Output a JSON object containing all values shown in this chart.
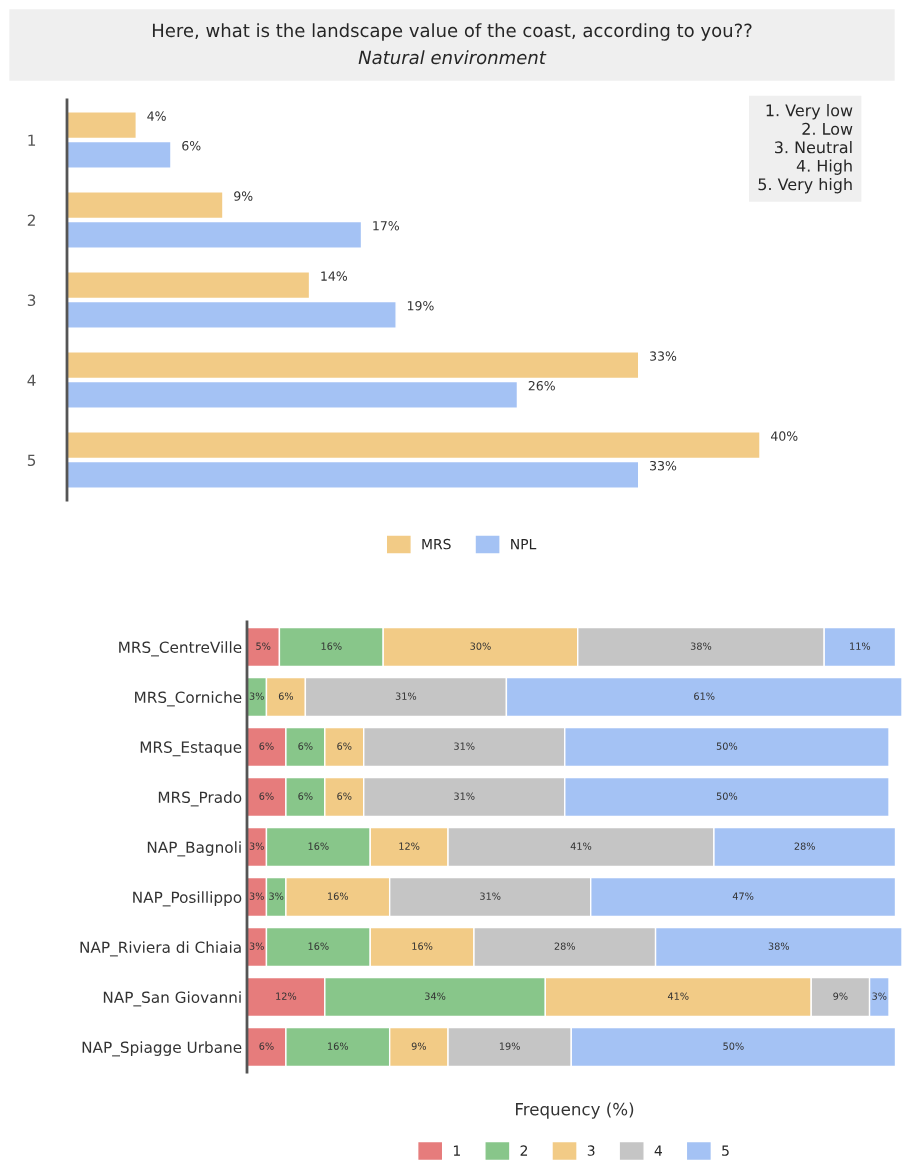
{
  "chart_data": [
    {
      "type": "bar",
      "orientation": "horizontal",
      "title": "Here, what is the landscape value of the coast, according to you??",
      "subtitle": "Natural environment",
      "categories": [
        "1",
        "2",
        "3",
        "4",
        "5"
      ],
      "series": [
        {
          "name": "MRS",
          "color": "#f2cb86",
          "values": [
            4,
            9,
            14,
            33,
            40
          ],
          "value_labels": [
            "4%",
            "9%",
            "14%",
            "33%",
            "40%"
          ]
        },
        {
          "name": "NPL",
          "color": "#a4c2f4",
          "values": [
            6,
            17,
            19,
            26,
            33
          ],
          "value_labels": [
            "6%",
            "17%",
            "19%",
            "26%",
            "33%"
          ]
        }
      ],
      "legend": "bottom",
      "grid": false,
      "annotations": [
        "1. Very low\n2. Low\n3. Neutral\n4. High\n5. Very high"
      ]
    },
    {
      "type": "bar",
      "orientation": "horizontal",
      "stacked": true,
      "xlabel": "Frequency (%)",
      "categories": [
        "MRS_CentreVille",
        "MRS_Corniche",
        "MRS_Estaque",
        "MRS_Prado",
        "NAP_Bagnoli",
        "NAP_Posillippo",
        "NAP_Riviera di Chiaia",
        "NAP_San Giovanni",
        "NAP_Spiagge Urbane"
      ],
      "series": [
        {
          "name": "1",
          "color": "#e67c7c",
          "values": [
            5,
            null,
            6,
            6,
            3,
            3,
            3,
            12,
            6
          ],
          "value_labels": [
            "5%",
            null,
            "6%",
            "6%",
            "3%",
            "3%",
            "3%",
            "12%",
            "6%"
          ]
        },
        {
          "name": "2",
          "color": "#88c68a",
          "values": [
            16,
            3,
            6,
            6,
            16,
            3,
            16,
            34,
            16
          ],
          "value_labels": [
            "16%",
            "3%",
            "6%",
            "6%",
            "16%",
            "3%",
            "16%",
            "34%",
            "16%"
          ]
        },
        {
          "name": "3",
          "color": "#f2cb86",
          "values": [
            30,
            6,
            6,
            6,
            12,
            16,
            16,
            41,
            9
          ],
          "value_labels": [
            "30%",
            "6%",
            "6%",
            "6%",
            "12%",
            "16%",
            "16%",
            "41%",
            "9%"
          ]
        },
        {
          "name": "4",
          "color": "#c5c5c5",
          "values": [
            38,
            31,
            31,
            31,
            41,
            31,
            28,
            9,
            19
          ],
          "value_labels": [
            "38%",
            "31%",
            "31%",
            "31%",
            "41%",
            "31%",
            "28%",
            "9%",
            "19%"
          ]
        },
        {
          "name": "5",
          "color": "#a4c2f4",
          "values": [
            11,
            61,
            50,
            50,
            28,
            47,
            38,
            3,
            50
          ],
          "value_labels": [
            "11%",
            "61%",
            "50%",
            "50%",
            "28%",
            "47%",
            "38%",
            "3%",
            "50%"
          ]
        }
      ],
      "legend": "bottom",
      "grid": false
    }
  ]
}
